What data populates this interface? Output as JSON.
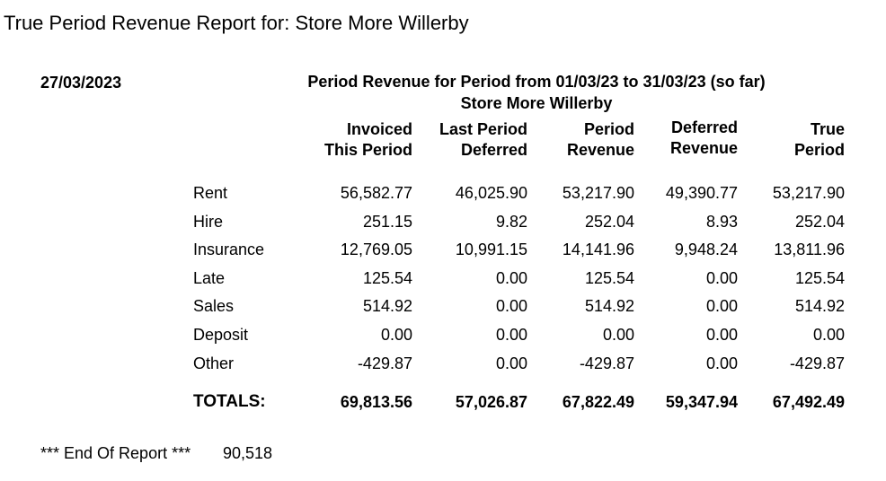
{
  "header": {
    "title": "True Period Revenue Report for: Store More Willerby"
  },
  "report": {
    "date": "27/03/2023",
    "heading": "Period Revenue for Period from 01/03/23 to 31/03/23 (so far)",
    "store": "Store More Willerby",
    "columns": [
      [
        "Invoiced",
        "This Period"
      ],
      [
        "Last Period",
        "Deferred"
      ],
      [
        "Period",
        "Revenue"
      ],
      [
        "Deferred",
        "Revenue"
      ],
      [
        "True",
        "Period"
      ]
    ],
    "rows": [
      {
        "label": "Rent",
        "values": [
          "56,582.77",
          "46,025.90",
          "53,217.90",
          "49,390.77",
          "53,217.90"
        ]
      },
      {
        "label": "Hire",
        "values": [
          "251.15",
          "9.82",
          "252.04",
          "8.93",
          "252.04"
        ]
      },
      {
        "label": "Insurance",
        "values": [
          "12,769.05",
          "10,991.15",
          "14,141.96",
          "9,948.24",
          "13,811.96"
        ]
      },
      {
        "label": "Late",
        "values": [
          "125.54",
          "0.00",
          "125.54",
          "0.00",
          "125.54"
        ]
      },
      {
        "label": "Sales",
        "values": [
          "514.92",
          "0.00",
          "514.92",
          "0.00",
          "514.92"
        ]
      },
      {
        "label": "Deposit",
        "values": [
          "0.00",
          "0.00",
          "0.00",
          "0.00",
          "0.00"
        ]
      },
      {
        "label": "Other",
        "values": [
          "-429.87",
          "0.00",
          "-429.87",
          "0.00",
          "-429.87"
        ]
      }
    ],
    "totals": {
      "label": "TOTALS:",
      "values": [
        "69,813.56",
        "57,026.87",
        "67,822.49",
        "59,347.94",
        "67,492.49"
      ]
    }
  },
  "footer": {
    "text": "*** End Of Report ***",
    "number": "90,518"
  }
}
